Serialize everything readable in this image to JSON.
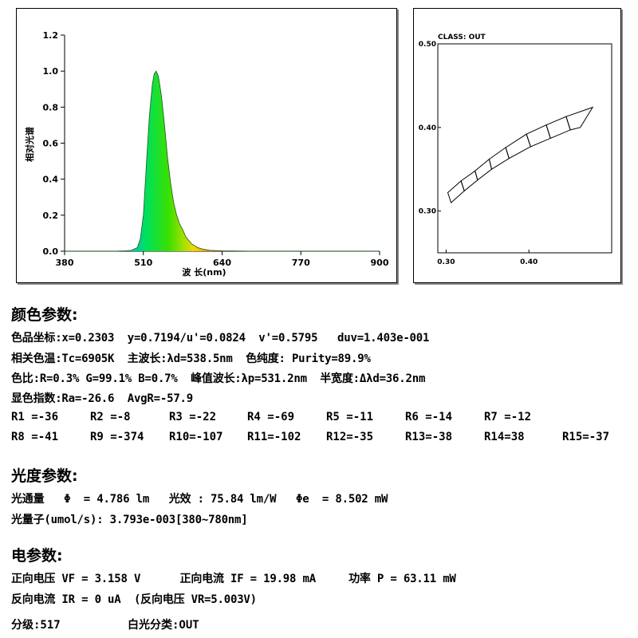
{
  "chart_data": [
    {
      "type": "line",
      "title": "",
      "xlabel": "波 长(nm)",
      "ylabel": "相对光谱",
      "xlim": [
        380,
        900
      ],
      "ylim": [
        0,
        1.2
      ],
      "x_ticks": [
        "380",
        "510",
        "640",
        "770",
        "900"
      ],
      "y_ticks": [
        "0.0",
        "0.2",
        "0.4",
        "0.6",
        "0.8",
        "1.0",
        "1.2"
      ],
      "grid": false,
      "series": [
        {
          "x": [
            380,
            460,
            480,
            490,
            500,
            505,
            510,
            515,
            520,
            525,
            528,
            531.2,
            535,
            540,
            545,
            550,
            555,
            560,
            565,
            570,
            575,
            580,
            590,
            600,
            610,
            620,
            640,
            700,
            780,
            900
          ],
          "values": [
            0,
            0,
            0.002,
            0.005,
            0.02,
            0.07,
            0.2,
            0.48,
            0.75,
            0.93,
            0.985,
            1.0,
            0.97,
            0.86,
            0.7,
            0.52,
            0.38,
            0.27,
            0.2,
            0.15,
            0.12,
            0.08,
            0.04,
            0.02,
            0.01,
            0.005,
            0.002,
            0,
            0,
            0
          ]
        }
      ]
    },
    {
      "type": "scatter",
      "title": "CLASS: OUT",
      "xlim": [
        0.29,
        0.5
      ],
      "ylim": [
        0.25,
        0.5
      ],
      "x_ticks": [
        "0.30",
        "0.40"
      ],
      "y_ticks": [
        "0.30",
        "0.40",
        "0.50"
      ],
      "grid": false,
      "bins": [
        {
          "corners": [
            [
              0.302,
              0.322
            ],
            [
              0.318,
              0.336
            ],
            [
              0.322,
              0.324
            ],
            [
              0.306,
              0.31
            ]
          ]
        },
        {
          "corners": [
            [
              0.318,
              0.336
            ],
            [
              0.335,
              0.348
            ],
            [
              0.338,
              0.337
            ],
            [
              0.322,
              0.324
            ]
          ]
        },
        {
          "corners": [
            [
              0.335,
              0.348
            ],
            [
              0.352,
              0.362
            ],
            [
              0.355,
              0.35
            ],
            [
              0.338,
              0.337
            ]
          ]
        },
        {
          "corners": [
            [
              0.352,
              0.362
            ],
            [
              0.372,
              0.376
            ],
            [
              0.376,
              0.363
            ],
            [
              0.355,
              0.35
            ]
          ]
        },
        {
          "corners": [
            [
              0.372,
              0.376
            ],
            [
              0.397,
              0.392
            ],
            [
              0.402,
              0.377
            ],
            [
              0.376,
              0.363
            ]
          ]
        },
        {
          "corners": [
            [
              0.397,
              0.392
            ],
            [
              0.421,
              0.403
            ],
            [
              0.426,
              0.387
            ],
            [
              0.402,
              0.377
            ]
          ]
        },
        {
          "corners": [
            [
              0.421,
              0.403
            ],
            [
              0.445,
              0.413
            ],
            [
              0.45,
              0.397
            ],
            [
              0.426,
              0.387
            ]
          ]
        },
        {
          "corners": [
            [
              0.445,
              0.413
            ],
            [
              0.477,
              0.424
            ],
            [
              0.462,
              0.4
            ],
            [
              0.45,
              0.397
            ]
          ]
        }
      ]
    }
  ],
  "color_params": {
    "title": "颜色参数:",
    "line1": "色品坐标:x=0.2303  y=0.7194/u'=0.0824  v'=0.5795   duv=1.403e-001",
    "line2": "相关色温:Tc=6905K  主波长:λd=538.5nm  色纯度: Purity=89.9%",
    "line3": "色比:R=0.3% G=99.1% B=0.7%  峰值波长:λp=531.2nm  半宽度:Δλd=36.2nm",
    "line4": "显色指数:Ra=-26.6  AvgR=-57.9",
    "cri_row1": [
      "R1 =-36",
      "R2 =-8",
      "R3 =-22",
      "R4 =-69",
      "R5 =-11",
      "R6 =-14",
      "R7 =-12"
    ],
    "cri_row2": [
      "R8 =-41",
      "R9 =-374",
      "R10=-107",
      "R11=-102",
      "R12=-35",
      "R13=-38",
      "R14=38",
      "R15=-37"
    ]
  },
  "photometric": {
    "title": "光度参数:",
    "line1": "光通量   Φ  = 4.786 lm   光效 : 75.84 lm/W   Φe  = 8.502 mW",
    "line2": "光量子(umol/s): 3.793e-003[380~780nm]"
  },
  "electrical": {
    "title": "电参数:",
    "line1": "正向电压 VF = 3.158 V      正向电流 IF = 19.98 mA     功率 P = 63.11 mW",
    "line2": "反向电流 IR = 0 uA  (反向电压 VR=5.003V)"
  },
  "footer": {
    "grade": "分级:517",
    "white_class": "白光分类:OUT"
  }
}
